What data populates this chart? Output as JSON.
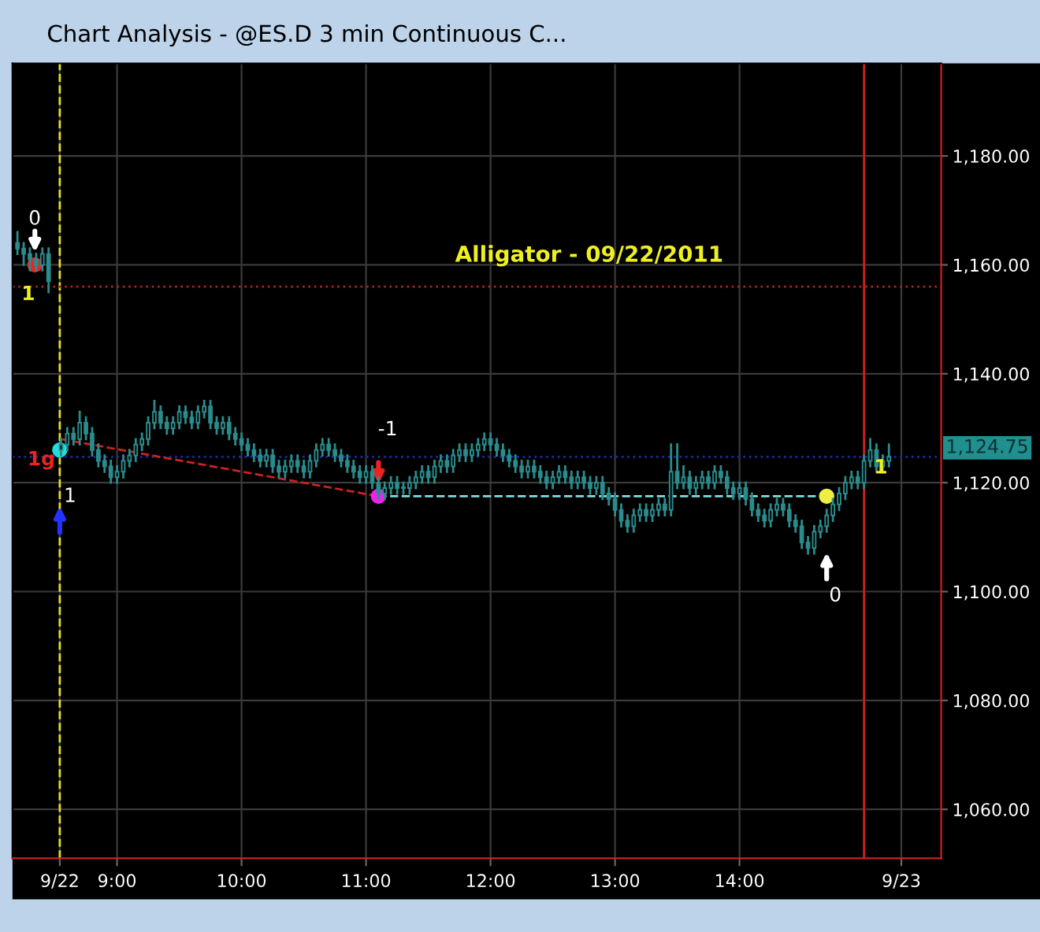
{
  "chart_data": {
    "type": "candlestick",
    "title": "Chart Analysis - @ES.D 3 min Continuous C...",
    "x": [
      8.2,
      8.25,
      8.3,
      8.35,
      8.4,
      8.45,
      8.55,
      8.6,
      8.65,
      8.7,
      8.75,
      8.8,
      8.85,
      8.9,
      8.95,
      9.0,
      9.05,
      9.1,
      9.15,
      9.2,
      9.25,
      9.3,
      9.35,
      9.4,
      9.45,
      9.5,
      9.55,
      9.6,
      9.65,
      9.7,
      9.75,
      9.8,
      9.85,
      9.9,
      9.95,
      10.0,
      10.05,
      10.1,
      10.15,
      10.2,
      10.25,
      10.3,
      10.35,
      10.4,
      10.45,
      10.5,
      10.55,
      10.6,
      10.65,
      10.7,
      10.75,
      10.8,
      10.85,
      10.9,
      10.95,
      11.0,
      11.05,
      11.1,
      11.15,
      11.2,
      11.25,
      11.3,
      11.35,
      11.4,
      11.45,
      11.5,
      11.55,
      11.6,
      11.65,
      11.7,
      11.75,
      11.8,
      11.85,
      11.9,
      11.95,
      12.0,
      12.05,
      12.1,
      12.15,
      12.2,
      12.25,
      12.3,
      12.35,
      12.4,
      12.45,
      12.5,
      12.55,
      12.6,
      12.65,
      12.7,
      12.75,
      12.8,
      12.85,
      12.9,
      12.95,
      13.0,
      13.05,
      13.1,
      13.15,
      13.2,
      13.25,
      13.3,
      13.35,
      13.4,
      13.45,
      13.5,
      13.55,
      13.6,
      13.65,
      13.7,
      13.75,
      13.8,
      13.85,
      13.9,
      13.95,
      14.0,
      14.05,
      14.1,
      14.15,
      14.2,
      14.25,
      14.3,
      14.35,
      14.4,
      14.45,
      14.5,
      14.55,
      14.6,
      14.65,
      14.7,
      14.75,
      14.8,
      14.85,
      14.9,
      14.95,
      15.0,
      15.05,
      15.1,
      15.15,
      15.2
    ],
    "ohlc": [
      [
        1164,
        1166,
        1162,
        1163
      ],
      [
        1163,
        1164,
        1160,
        1162
      ],
      [
        1162,
        1163,
        1159,
        1161
      ],
      [
        1161,
        1162,
        1159,
        1160
      ],
      [
        1160,
        1163,
        1159,
        1162
      ],
      [
        1162,
        1163,
        1155,
        1157
      ],
      [
        1126,
        1128,
        1125,
        1127
      ],
      [
        1127,
        1130,
        1126,
        1129
      ],
      [
        1129,
        1130,
        1127,
        1128
      ],
      [
        1128,
        1133,
        1127,
        1131
      ],
      [
        1131,
        1132,
        1128,
        1129
      ],
      [
        1129,
        1130,
        1125,
        1126
      ],
      [
        1126,
        1127,
        1123,
        1124
      ],
      [
        1124,
        1125,
        1122,
        1123
      ],
      [
        1123,
        1124,
        1120,
        1121
      ],
      [
        1121,
        1123,
        1120,
        1122
      ],
      [
        1122,
        1125,
        1121,
        1124
      ],
      [
        1124,
        1126,
        1123,
        1125
      ],
      [
        1125,
        1128,
        1124,
        1127
      ],
      [
        1127,
        1129,
        1126,
        1128
      ],
      [
        1128,
        1132,
        1127,
        1131
      ],
      [
        1131,
        1135,
        1130,
        1133
      ],
      [
        1133,
        1134,
        1130,
        1131
      ],
      [
        1131,
        1132,
        1129,
        1130
      ],
      [
        1130,
        1132,
        1129,
        1131
      ],
      [
        1131,
        1134,
        1130,
        1133
      ],
      [
        1133,
        1134,
        1131,
        1132
      ],
      [
        1132,
        1133,
        1130,
        1131
      ],
      [
        1131,
        1134,
        1130,
        1133
      ],
      [
        1133,
        1135,
        1132,
        1134
      ],
      [
        1134,
        1135,
        1130,
        1131
      ],
      [
        1131,
        1132,
        1129,
        1130
      ],
      [
        1130,
        1132,
        1129,
        1131
      ],
      [
        1131,
        1132,
        1128,
        1129
      ],
      [
        1129,
        1130,
        1127,
        1128
      ],
      [
        1128,
        1129,
        1126,
        1127
      ],
      [
        1127,
        1128,
        1125,
        1126
      ],
      [
        1126,
        1127,
        1124,
        1125
      ],
      [
        1125,
        1126,
        1123,
        1124
      ],
      [
        1124,
        1126,
        1123,
        1125
      ],
      [
        1125,
        1126,
        1122,
        1123
      ],
      [
        1123,
        1124,
        1121,
        1122
      ],
      [
        1122,
        1124,
        1121,
        1123
      ],
      [
        1123,
        1125,
        1122,
        1124
      ],
      [
        1124,
        1125,
        1122,
        1123
      ],
      [
        1123,
        1124,
        1121,
        1122
      ],
      [
        1122,
        1125,
        1121,
        1124
      ],
      [
        1124,
        1127,
        1123,
        1126
      ],
      [
        1126,
        1128,
        1125,
        1127
      ],
      [
        1127,
        1128,
        1125,
        1126
      ],
      [
        1126,
        1127,
        1124,
        1125
      ],
      [
        1125,
        1126,
        1123,
        1124
      ],
      [
        1124,
        1125,
        1122,
        1123
      ],
      [
        1123,
        1124,
        1121,
        1122
      ],
      [
        1122,
        1123,
        1120,
        1121
      ],
      [
        1121,
        1123,
        1120,
        1122
      ],
      [
        1122,
        1123,
        1119,
        1120
      ],
      [
        1120,
        1121,
        1117,
        1118
      ],
      [
        1118,
        1120,
        1117,
        1119
      ],
      [
        1119,
        1121,
        1118,
        1120
      ],
      [
        1120,
        1121,
        1118,
        1119
      ],
      [
        1119,
        1120,
        1118,
        1119
      ],
      [
        1119,
        1121,
        1118,
        1120
      ],
      [
        1120,
        1122,
        1119,
        1121
      ],
      [
        1121,
        1123,
        1120,
        1122
      ],
      [
        1122,
        1123,
        1120,
        1121
      ],
      [
        1121,
        1124,
        1120,
        1123
      ],
      [
        1123,
        1125,
        1122,
        1124
      ],
      [
        1124,
        1125,
        1122,
        1123
      ],
      [
        1123,
        1126,
        1122,
        1125
      ],
      [
        1125,
        1127,
        1124,
        1126
      ],
      [
        1126,
        1127,
        1124,
        1125
      ],
      [
        1125,
        1127,
        1124,
        1126
      ],
      [
        1126,
        1128,
        1125,
        1127
      ],
      [
        1127,
        1129,
        1126,
        1128
      ],
      [
        1128,
        1129,
        1126,
        1127
      ],
      [
        1127,
        1128,
        1125,
        1126
      ],
      [
        1126,
        1127,
        1124,
        1125
      ],
      [
        1125,
        1126,
        1123,
        1124
      ],
      [
        1124,
        1125,
        1122,
        1123
      ],
      [
        1123,
        1124,
        1121,
        1122
      ],
      [
        1122,
        1124,
        1121,
        1123
      ],
      [
        1123,
        1124,
        1121,
        1122
      ],
      [
        1122,
        1123,
        1120,
        1121
      ],
      [
        1121,
        1122,
        1119,
        1120
      ],
      [
        1120,
        1122,
        1119,
        1121
      ],
      [
        1121,
        1123,
        1120,
        1122
      ],
      [
        1122,
        1123,
        1120,
        1121
      ],
      [
        1121,
        1122,
        1119,
        1120
      ],
      [
        1120,
        1122,
        1119,
        1121
      ],
      [
        1121,
        1122,
        1119,
        1120
      ],
      [
        1120,
        1121,
        1118,
        1119
      ],
      [
        1119,
        1121,
        1118,
        1120
      ],
      [
        1120,
        1121,
        1117,
        1118
      ],
      [
        1118,
        1119,
        1116,
        1117
      ],
      [
        1117,
        1118,
        1114,
        1115
      ],
      [
        1115,
        1116,
        1112,
        1113
      ],
      [
        1113,
        1114,
        1111,
        1112
      ],
      [
        1112,
        1115,
        1111,
        1114
      ],
      [
        1114,
        1116,
        1113,
        1115
      ],
      [
        1115,
        1116,
        1113,
        1114
      ],
      [
        1114,
        1116,
        1113,
        1115
      ],
      [
        1115,
        1117,
        1114,
        1116
      ],
      [
        1116,
        1117,
        1114,
        1115
      ],
      [
        1115,
        1127,
        1114,
        1122
      ],
      [
        1122,
        1127,
        1119,
        1120
      ],
      [
        1120,
        1123,
        1119,
        1121
      ],
      [
        1121,
        1122,
        1118,
        1119
      ],
      [
        1119,
        1121,
        1118,
        1120
      ],
      [
        1120,
        1122,
        1119,
        1121
      ],
      [
        1121,
        1122,
        1119,
        1120
      ],
      [
        1120,
        1123,
        1119,
        1122
      ],
      [
        1122,
        1123,
        1120,
        1121
      ],
      [
        1121,
        1122,
        1118,
        1119
      ],
      [
        1119,
        1120,
        1117,
        1118
      ],
      [
        1118,
        1120,
        1117,
        1119
      ],
      [
        1119,
        1120,
        1116,
        1117
      ],
      [
        1117,
        1118,
        1114,
        1115
      ],
      [
        1115,
        1116,
        1113,
        1114
      ],
      [
        1114,
        1115,
        1112,
        1113
      ],
      [
        1113,
        1116,
        1112,
        1115
      ],
      [
        1115,
        1117,
        1114,
        1116
      ],
      [
        1116,
        1117,
        1114,
        1115
      ],
      [
        1115,
        1116,
        1112,
        1113
      ],
      [
        1113,
        1114,
        1111,
        1112
      ],
      [
        1112,
        1113,
        1108,
        1109
      ],
      [
        1109,
        1110,
        1107,
        1108
      ],
      [
        1108,
        1112,
        1107,
        1111
      ],
      [
        1111,
        1113,
        1110,
        1112
      ],
      [
        1112,
        1115,
        1111,
        1114
      ],
      [
        1114,
        1117,
        1113,
        1116
      ],
      [
        1116,
        1119,
        1115,
        1118
      ],
      [
        1118,
        1121,
        1117,
        1120
      ],
      [
        1120,
        1122,
        1119,
        1121
      ],
      [
        1121,
        1122,
        1119,
        1120
      ],
      [
        1120,
        1125,
        1119,
        1124
      ],
      [
        1124,
        1128,
        1123,
        1126
      ],
      [
        1126,
        1127,
        1122,
        1123
      ],
      [
        1123,
        1125,
        1122,
        1124
      ],
      [
        1124,
        1127,
        1123,
        1124.75
      ]
    ],
    "color": "#2a8c8c",
    "series": [
      {
        "type": "line",
        "x": [
          8.55,
          11.1
        ],
        "values": [
          1128,
          1117.5
        ],
        "color": "#cc2222",
        "line_style": "dashed"
      },
      {
        "type": "line",
        "x": [
          11.1,
          14.7
        ],
        "values": [
          1117.5,
          1117.5
        ],
        "color": "#7fe0e0",
        "line_style": "dashed"
      },
      {
        "type": "scatter",
        "x": [
          8.34,
          8.54,
          11.1,
          14.7
        ],
        "values": [
          1160,
          1126,
          1117.5,
          1117.5
        ],
        "colors": [
          "#ee2222",
          "#22dddd",
          "#ee22ee",
          "#eeee44"
        ],
        "marker": "circle"
      }
    ],
    "ref_lines": [
      {
        "axis": "x",
        "value": 8.54,
        "color": "#e8e020",
        "line_style": "dashed"
      },
      {
        "axis": "x",
        "value": 15.0,
        "color": "#cc2020",
        "line_style": "solid"
      },
      {
        "axis": "y",
        "value": 1156,
        "color": "#aa2020",
        "line_style": "dotted"
      },
      {
        "axis": "y",
        "value": 1124.75,
        "label": "1,124.75",
        "color": "#1a2a9a",
        "line_style": "dotted"
      }
    ],
    "annotations": [
      "Alligator - 09/22/2011",
      "0",
      "1",
      "1g",
      "1",
      "-1",
      "0",
      "1"
    ],
    "xlim": [
      8.16,
      15.62
    ],
    "xticks": [
      {
        "value": 8.54,
        "label": "9/22"
      },
      {
        "value": 9,
        "label": "9:00"
      },
      {
        "value": 10,
        "label": "10:00"
      },
      {
        "value": 11,
        "label": "11:00"
      },
      {
        "value": 12,
        "label": "12:00"
      },
      {
        "value": 13,
        "label": "13:00"
      },
      {
        "value": 14,
        "label": "14:00"
      },
      {
        "value": 15.3,
        "label": "9/23"
      }
    ],
    "ylim": [
      1051,
      1197
    ],
    "yticks": [
      {
        "value": 1060,
        "label": "1,060.00"
      },
      {
        "value": 1080,
        "label": "1,080.00"
      },
      {
        "value": 1100,
        "label": "1,100.00"
      },
      {
        "value": 1120,
        "label": "1,120.00"
      },
      {
        "value": 1140,
        "label": "1,140.00"
      },
      {
        "value": 1160,
        "label": "1,160.00"
      },
      {
        "value": 1180,
        "label": "1,180.00"
      }
    ],
    "grid": true,
    "legend": false
  }
}
